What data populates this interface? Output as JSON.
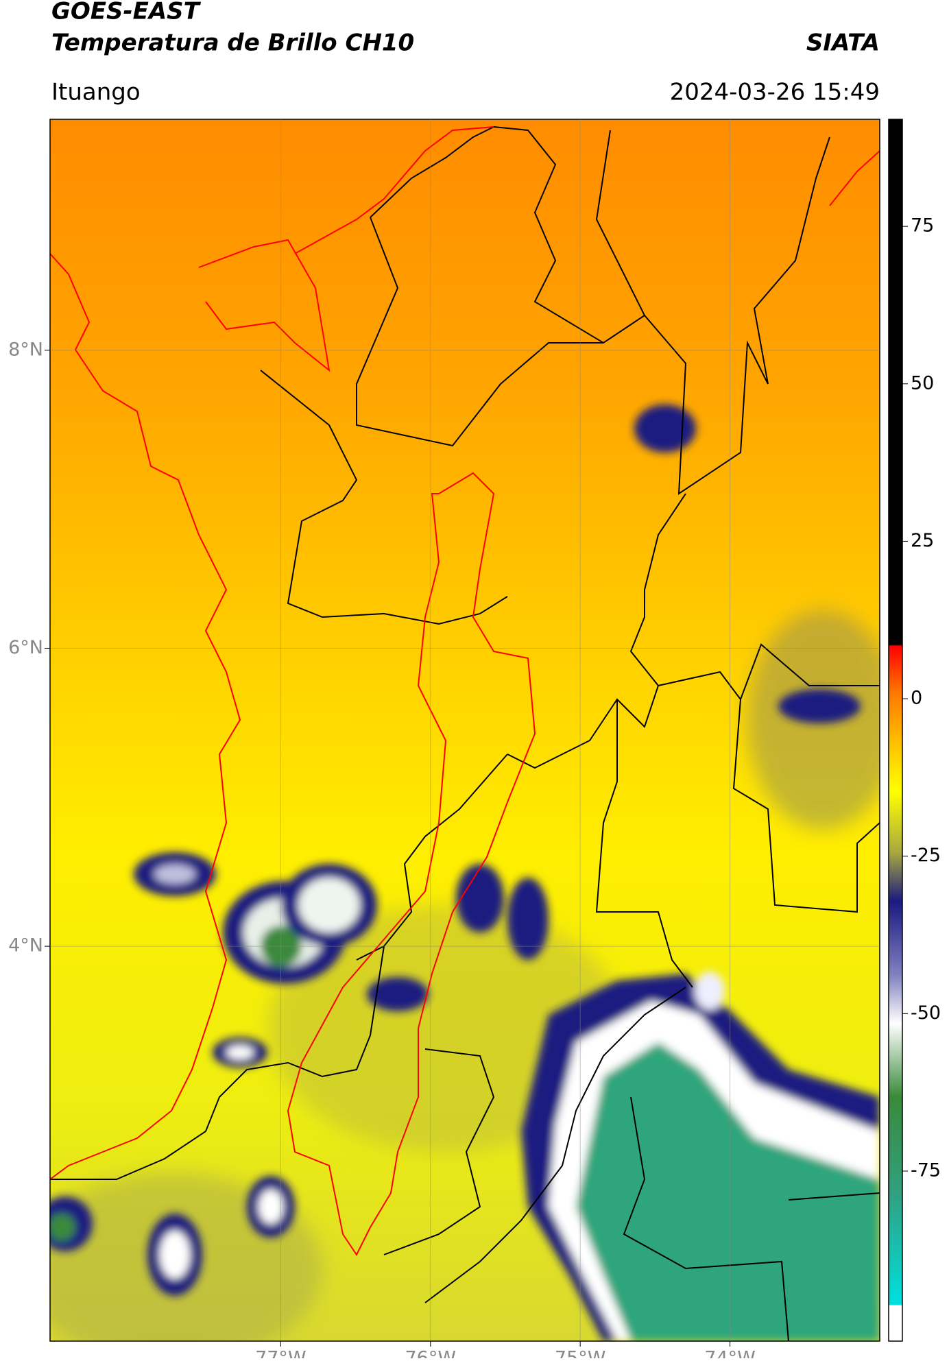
{
  "header": {
    "title": "GOES-EAST",
    "subtitle": "Temperatura de Brillo CH10",
    "source": "SIATA",
    "location": "Ituango",
    "timestamp": "2024-03-26 15:49"
  },
  "map": {
    "lat_range": [
      1.35,
      9.55
    ],
    "lon_range": [
      -78.54,
      -73.0
    ],
    "lat_ticks": [
      {
        "value": 8,
        "label": "8°N"
      },
      {
        "value": 6,
        "label": "6°N"
      },
      {
        "value": 4,
        "label": "4°N"
      }
    ],
    "lon_ticks": [
      {
        "value": -77,
        "label": "77°W"
      },
      {
        "value": -76,
        "label": "76°W"
      },
      {
        "value": -75,
        "label": "75°W"
      },
      {
        "value": -74,
        "label": "74°W"
      }
    ],
    "grid": true
  },
  "colorbar": {
    "range": [
      -102,
      92
    ],
    "ticks": [
      75,
      50,
      25,
      0,
      -25,
      -50,
      -75
    ]
  }
}
